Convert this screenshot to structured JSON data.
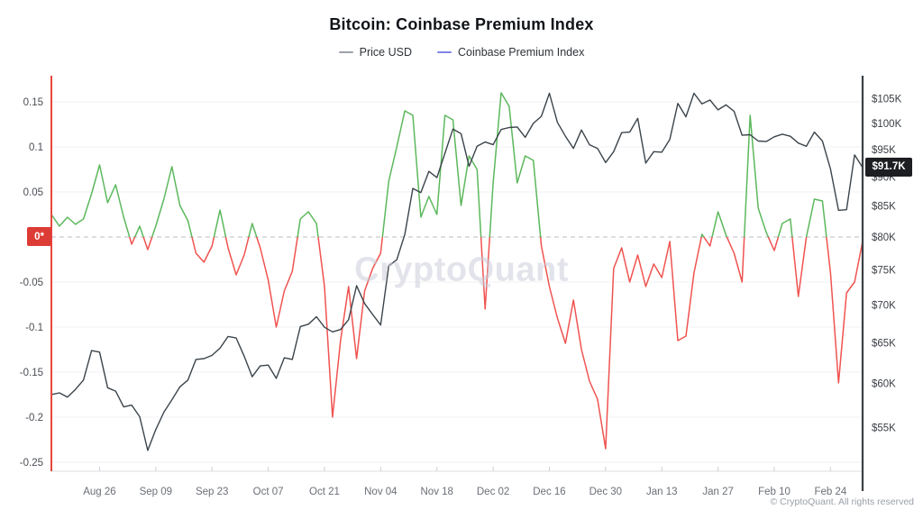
{
  "title": "Bitcoin: Coinbase Premium Index",
  "watermark": "CryptoQuant",
  "footer": "© CryptoQuant. All rights reserved",
  "zero_badge_label": "0*",
  "last_price_badge_label": "$91.7K",
  "legend": {
    "price": {
      "label": "Price USD",
      "color": "#9ba0a8"
    },
    "premium": {
      "label": "Coinbase Premium Index",
      "color": "#8285e8"
    }
  },
  "colors": {
    "price_line": "#3b444b",
    "premium_positive": "#5cb85c",
    "premium_negative": "#ef5350",
    "left_axis_spine": "#e8463e",
    "right_axis_spine": "#3a3f45",
    "grid": "#f2f2f5",
    "zero_dash": "#c9cad1",
    "tick_text": "#4a4e55",
    "x_text": "#6b6f76"
  },
  "chart_data": {
    "type": "line",
    "title": "Bitcoin: Coinbase Premium Index",
    "legend_position": "top",
    "grid": true,
    "x_tick_labels": [
      "Aug 26",
      "Sep 09",
      "Sep 23",
      "Oct 07",
      "Oct 21",
      "Nov 04",
      "Nov 18",
      "Dec 02",
      "Dec 16",
      "Dec 30",
      "Jan 13",
      "Jan 27",
      "Feb 10",
      "Feb 24"
    ],
    "left_axis": {
      "label": "Coinbase Premium Index",
      "ticks": [
        {
          "label": "0.15",
          "value": 0.15
        },
        {
          "label": "0.1",
          "value": 0.1
        },
        {
          "label": "0.05",
          "value": 0.05
        },
        {
          "label": "0*",
          "value": 0,
          "badge": true
        },
        {
          "label": "-0.05",
          "value": -0.05
        },
        {
          "label": "-0.1",
          "value": -0.1
        },
        {
          "label": "-0.15",
          "value": -0.15
        },
        {
          "label": "-0.2",
          "value": -0.2
        },
        {
          "label": "-0.25",
          "value": -0.25
        }
      ],
      "range": [
        -0.27,
        0.18
      ],
      "zero_marker": "0*"
    },
    "right_axis": {
      "label": "Price USD",
      "scale": "log",
      "ticks": [
        {
          "label": "$105K",
          "value": 105
        },
        {
          "label": "$100K",
          "value": 100
        },
        {
          "label": "$95K",
          "value": 95
        },
        {
          "label": "$90K",
          "value": 90
        },
        {
          "label": "$85K",
          "value": 85
        },
        {
          "label": "$80K",
          "value": 80
        },
        {
          "label": "$75K",
          "value": 75
        },
        {
          "label": "$70K",
          "value": 70
        },
        {
          "label": "$65K",
          "value": 65
        },
        {
          "label": "$60K",
          "value": 60
        },
        {
          "label": "$55K",
          "value": 55
        }
      ],
      "last_price_label": "$91.7K",
      "last_price_value": 91.7
    },
    "dates": [
      "Aug 14",
      "Aug 16",
      "Aug 18",
      "Aug 20",
      "Aug 22",
      "Aug 24",
      "Aug 26",
      "Aug 28",
      "Aug 30",
      "Sep 01",
      "Sep 03",
      "Sep 05",
      "Sep 07",
      "Sep 09",
      "Sep 11",
      "Sep 13",
      "Sep 15",
      "Sep 17",
      "Sep 19",
      "Sep 21",
      "Sep 23",
      "Sep 25",
      "Sep 27",
      "Sep 29",
      "Oct 01",
      "Oct 03",
      "Oct 05",
      "Oct 07",
      "Oct 09",
      "Oct 11",
      "Oct 13",
      "Oct 15",
      "Oct 17",
      "Oct 19",
      "Oct 21",
      "Oct 23",
      "Oct 25",
      "Oct 27",
      "Oct 29",
      "Oct 31",
      "Nov 02",
      "Nov 04",
      "Nov 06",
      "Nov 08",
      "Nov 10",
      "Nov 12",
      "Nov 14",
      "Nov 16",
      "Nov 18",
      "Nov 20",
      "Nov 22",
      "Nov 24",
      "Nov 26",
      "Nov 28",
      "Nov 30",
      "Dec 02",
      "Dec 04",
      "Dec 06",
      "Dec 08",
      "Dec 10",
      "Dec 12",
      "Dec 14",
      "Dec 16",
      "Dec 18",
      "Dec 20",
      "Dec 22",
      "Dec 24",
      "Dec 26",
      "Dec 28",
      "Dec 30",
      "Jan 01",
      "Jan 03",
      "Jan 05",
      "Jan 07",
      "Jan 09",
      "Jan 11",
      "Jan 13",
      "Jan 15",
      "Jan 17",
      "Jan 19",
      "Jan 21",
      "Jan 23",
      "Jan 25",
      "Jan 27",
      "Jan 29",
      "Jan 31",
      "Feb 02",
      "Feb 04",
      "Feb 06",
      "Feb 08",
      "Feb 10",
      "Feb 12",
      "Feb 14",
      "Feb 16",
      "Feb 18",
      "Feb 20",
      "Feb 22",
      "Feb 24",
      "Feb 26",
      "Feb 28",
      "Mar 02",
      "Mar 04"
    ],
    "series": [
      {
        "name": "Price USD",
        "axis": "right",
        "unit": "thousand USD",
        "values": [
          58.7,
          58.9,
          58.4,
          59.3,
          60.4,
          64.0,
          63.8,
          59.5,
          59.1,
          57.3,
          57.5,
          56.2,
          52.6,
          54.8,
          56.7,
          58.1,
          59.6,
          60.4,
          62.9,
          63.0,
          63.4,
          64.3,
          65.8,
          65.6,
          63.3,
          60.8,
          62.1,
          62.2,
          60.6,
          63.1,
          62.9,
          67.1,
          67.4,
          68.4,
          67.0,
          66.4,
          66.7,
          68.0,
          72.7,
          70.2,
          68.7,
          67.3,
          75.6,
          76.5,
          80.4,
          88.0,
          87.3,
          91.0,
          89.9,
          94.3,
          98.9,
          98.0,
          91.9,
          95.6,
          96.4,
          95.9,
          98.8,
          99.2,
          99.3,
          97.3,
          100.0,
          101.4,
          106.1,
          100.2,
          97.5,
          95.2,
          98.7,
          95.9,
          95.2,
          92.6,
          94.6,
          98.2,
          98.3,
          101.0,
          92.5,
          94.6,
          94.5,
          96.9,
          104.0,
          101.3,
          106.1,
          103.9,
          104.7,
          102.7,
          103.7,
          102.4,
          97.7,
          97.8,
          96.6,
          96.5,
          97.4,
          97.9,
          97.5,
          96.2,
          95.6,
          98.3,
          96.6,
          91.4,
          84.3,
          84.4,
          94.0,
          91.7
        ]
      },
      {
        "name": "Coinbase Premium Index",
        "axis": "left",
        "values": [
          0.025,
          0.012,
          0.022,
          0.014,
          0.02,
          0.048,
          0.08,
          0.038,
          0.058,
          0.022,
          -0.008,
          0.012,
          -0.014,
          0.012,
          0.042,
          0.078,
          0.035,
          0.018,
          -0.018,
          -0.028,
          -0.01,
          0.03,
          -0.012,
          -0.042,
          -0.02,
          0.015,
          -0.012,
          -0.048,
          -0.1,
          -0.06,
          -0.038,
          0.02,
          0.028,
          0.015,
          -0.055,
          -0.2,
          -0.115,
          -0.055,
          -0.135,
          -0.06,
          -0.035,
          -0.018,
          0.062,
          0.1,
          0.14,
          0.135,
          0.022,
          0.045,
          0.025,
          0.135,
          0.13,
          0.035,
          0.09,
          0.075,
          -0.08,
          0.06,
          0.16,
          0.145,
          0.06,
          0.09,
          0.085,
          -0.01,
          -0.055,
          -0.09,
          -0.118,
          -0.07,
          -0.125,
          -0.16,
          -0.18,
          -0.235,
          -0.035,
          -0.012,
          -0.05,
          -0.02,
          -0.055,
          -0.03,
          -0.045,
          -0.005,
          -0.115,
          -0.11,
          -0.04,
          0.003,
          -0.01,
          0.028,
          0.002,
          -0.018,
          -0.05,
          0.135,
          0.032,
          0.005,
          -0.015,
          0.015,
          0.02,
          -0.066,
          0.0,
          0.042,
          0.04,
          -0.04,
          -0.162,
          -0.062,
          -0.05,
          -0.005
        ]
      }
    ]
  }
}
